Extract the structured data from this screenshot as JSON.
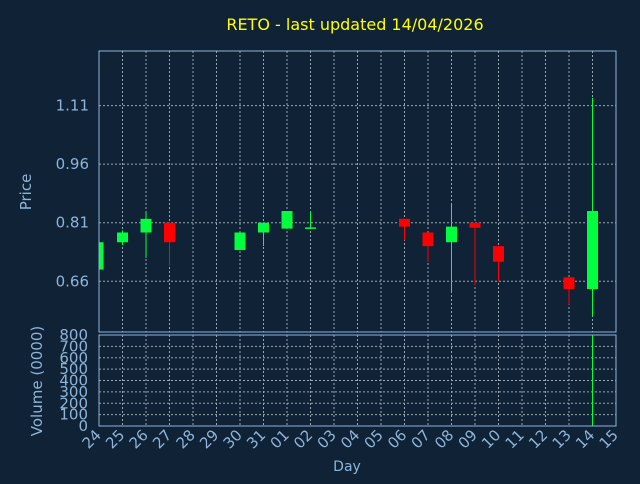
{
  "chart_data": {
    "type": "candlestick",
    "title": "RETO - last updated 14/04/2026",
    "xlabel": "Day",
    "ylabel": "Price",
    "volume_label": "Volume (0000)",
    "x_ticks": [
      "24",
      "25",
      "26",
      "27",
      "28",
      "29",
      "30",
      "31",
      "01",
      "02",
      "03",
      "04",
      "05",
      "06",
      "07",
      "08",
      "09",
      "10",
      "11",
      "12",
      "13",
      "14",
      "15"
    ],
    "price_ticks": [
      "0.66",
      "0.81",
      "0.96",
      "1.11"
    ],
    "price_tick_values": [
      0.66,
      0.81,
      0.96,
      1.11
    ],
    "volume_ticks": [
      "0",
      "100",
      "200",
      "300",
      "400",
      "500",
      "600",
      "700",
      "800"
    ],
    "volume_tick_values": [
      0,
      100,
      200,
      300,
      400,
      500,
      600,
      700,
      800
    ],
    "price_range": [
      0.53,
      1.25
    ],
    "volume_range": [
      0,
      800
    ],
    "grid": true,
    "colors": {
      "background": "#0f2236",
      "title": "#ffff00",
      "axis_text": "#8fb4d8",
      "grid": "#9aa6b2",
      "up": "#00ff3c",
      "down": "#ff0000"
    },
    "candles": [
      {
        "day": "24",
        "open": 0.69,
        "high": 0.76,
        "low": 0.69,
        "close": 0.76
      },
      {
        "day": "25",
        "open": 0.76,
        "high": 0.79,
        "low": 0.753,
        "close": 0.785
      },
      {
        "day": "26",
        "open": 0.785,
        "high": 0.84,
        "low": 0.72,
        "close": 0.82
      },
      {
        "day": "27",
        "open": 0.81,
        "high": 0.81,
        "low": 0.7,
        "close": 0.76
      },
      {
        "day": "30",
        "open": 0.74,
        "high": 0.785,
        "low": 0.74,
        "close": 0.785
      },
      {
        "day": "31",
        "open": 0.785,
        "high": 0.81,
        "low": 0.75,
        "close": 0.81
      },
      {
        "day": "01",
        "open": 0.795,
        "high": 0.84,
        "low": 0.795,
        "close": 0.84
      },
      {
        "day": "02",
        "open": 0.795,
        "high": 0.84,
        "low": 0.795,
        "close": 0.798
      },
      {
        "day": "06",
        "open": 0.82,
        "high": 0.82,
        "low": 0.765,
        "close": 0.8
      },
      {
        "day": "07",
        "open": 0.785,
        "high": 0.785,
        "low": 0.71,
        "close": 0.75
      },
      {
        "day": "08",
        "open": 0.76,
        "high": 0.86,
        "low": 0.63,
        "close": 0.8
      },
      {
        "day": "09",
        "open": 0.81,
        "high": 0.81,
        "low": 0.65,
        "close": 0.797
      },
      {
        "day": "10",
        "open": 0.75,
        "high": 0.75,
        "low": 0.66,
        "close": 0.71
      },
      {
        "day": "13",
        "open": 0.67,
        "high": 0.67,
        "low": 0.6,
        "close": 0.64
      },
      {
        "day": "14",
        "open": 0.64,
        "high": 1.13,
        "low": 0.57,
        "close": 0.84
      }
    ],
    "volume": [
      {
        "day": "14",
        "value": 800
      }
    ]
  }
}
